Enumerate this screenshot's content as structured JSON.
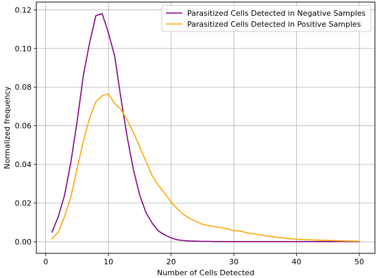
{
  "chart_data": {
    "type": "line",
    "title": "",
    "xlabel": "Number of Cells Detected",
    "ylabel": "Normalized frequency",
    "xlim": [
      -1.5,
      52.5
    ],
    "ylim": [
      -0.006,
      0.124
    ],
    "xticks": [
      0,
      10,
      20,
      30,
      40,
      50
    ],
    "yticks": [
      0.0,
      0.02,
      0.04,
      0.06,
      0.08,
      0.1,
      0.12
    ],
    "xtick_labels": [
      "0",
      "10",
      "20",
      "30",
      "40",
      "50"
    ],
    "ytick_labels": [
      "0.00",
      "0.02",
      "0.04",
      "0.06",
      "0.08",
      "0.10",
      "0.12"
    ],
    "grid": true,
    "legend_position": "top-right",
    "series": [
      {
        "name": "Parasitized Cells Detected in Negative Samples",
        "color": "#800080",
        "x": [
          1,
          2,
          3,
          4,
          5,
          6,
          7,
          8,
          9,
          10,
          11,
          12,
          13,
          14,
          15,
          16,
          17,
          18,
          19,
          20,
          21,
          22,
          23,
          24,
          25,
          26,
          27,
          28,
          29,
          30,
          31,
          32,
          33,
          34,
          35,
          36,
          37,
          38,
          39,
          40,
          41,
          42,
          43,
          44,
          45,
          46,
          47,
          48,
          49,
          50
        ],
        "y": [
          0.005,
          0.013,
          0.024,
          0.041,
          0.062,
          0.086,
          0.103,
          0.117,
          0.118,
          0.108,
          0.096,
          0.074,
          0.054,
          0.037,
          0.024,
          0.015,
          0.0095,
          0.0055,
          0.0035,
          0.002,
          0.001,
          0.0006,
          0.0004,
          0.0003,
          0.0002,
          0.0002,
          0.0001,
          0.0001,
          0.0001,
          0.0001,
          0.0001,
          0.0001,
          0.0001,
          0.0001,
          0.0001,
          0.0001,
          0.0001,
          0.0001,
          0.0001,
          0.0001,
          0.0001,
          0.0001,
          0.0001,
          0.0001,
          0.0001,
          0.0001,
          0.0001,
          0.0001,
          0.0001,
          0.0001
        ]
      },
      {
        "name": "Parasitized Cells Detected in Positive Samples",
        "color": "#FFA500",
        "x": [
          1,
          2,
          3,
          4,
          5,
          6,
          7,
          8,
          9,
          10,
          11,
          12,
          13,
          14,
          15,
          16,
          17,
          18,
          19,
          20,
          21,
          22,
          23,
          24,
          25,
          26,
          27,
          28,
          29,
          30,
          31,
          32,
          33,
          34,
          35,
          36,
          37,
          38,
          39,
          40,
          41,
          42,
          43,
          44,
          45,
          46,
          47,
          48,
          49,
          50
        ],
        "y": [
          0.0015,
          0.005,
          0.013,
          0.023,
          0.038,
          0.052,
          0.064,
          0.0725,
          0.0755,
          0.0765,
          0.0715,
          0.0685,
          0.063,
          0.0565,
          0.049,
          0.0415,
          0.034,
          0.029,
          0.025,
          0.0205,
          0.017,
          0.014,
          0.012,
          0.0105,
          0.009,
          0.0083,
          0.0078,
          0.0072,
          0.0067,
          0.0057,
          0.0055,
          0.0047,
          0.0041,
          0.0037,
          0.0031,
          0.0027,
          0.0022,
          0.0019,
          0.0016,
          0.0013,
          0.0011,
          0.001,
          0.0009,
          0.0008,
          0.0007,
          0.0006,
          0.0005,
          0.0004,
          0.0003,
          0.0003
        ]
      }
    ]
  }
}
